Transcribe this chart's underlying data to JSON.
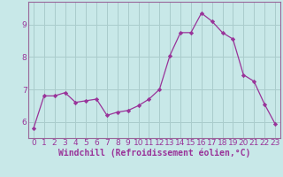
{
  "x": [
    0,
    1,
    2,
    3,
    4,
    5,
    6,
    7,
    8,
    9,
    10,
    11,
    12,
    13,
    14,
    15,
    16,
    17,
    18,
    19,
    20,
    21,
    22,
    23
  ],
  "y": [
    5.8,
    6.8,
    6.8,
    6.9,
    6.6,
    6.65,
    6.7,
    6.2,
    6.3,
    6.35,
    6.5,
    6.7,
    7.0,
    8.05,
    8.75,
    8.75,
    9.35,
    9.1,
    8.75,
    8.55,
    7.45,
    7.25,
    6.55,
    5.95
  ],
  "xlabel": "Windchill (Refroidissement éolien,°C)",
  "line_color": "#993399",
  "marker": "D",
  "marker_size": 2.2,
  "background_color": "#c8e8e8",
  "grid_color": "#aacccc",
  "ylim": [
    5.5,
    9.7
  ],
  "yticks": [
    6,
    7,
    8,
    9
  ],
  "xticks": [
    0,
    1,
    2,
    3,
    4,
    5,
    6,
    7,
    8,
    9,
    10,
    11,
    12,
    13,
    14,
    15,
    16,
    17,
    18,
    19,
    20,
    21,
    22,
    23
  ],
  "xlim": [
    -0.5,
    23.5
  ],
  "tick_label_fontsize": 6.5,
  "xlabel_fontsize": 7.0,
  "label_color": "#993399",
  "spine_color": "#996699"
}
